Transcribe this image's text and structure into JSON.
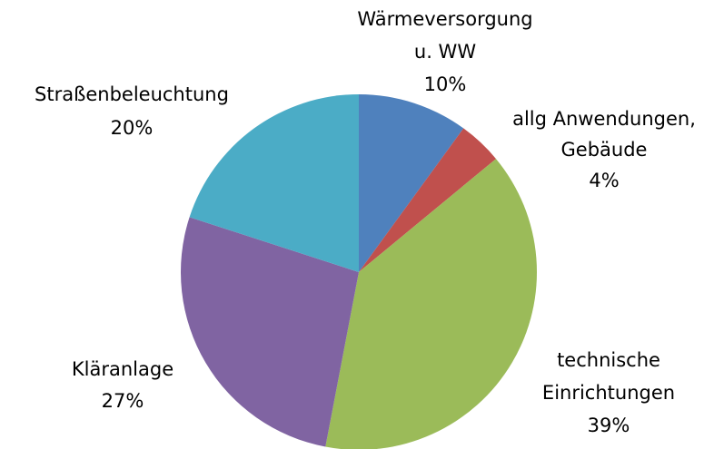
{
  "chart_data": {
    "type": "pie",
    "categories": [
      [
        "Wärmeversorgung",
        "u. WW"
      ],
      [
        "allg Anwendungen,",
        "Gebäude"
      ],
      [
        "technische",
        "Einrichtungen"
      ],
      [
        "Kläranlage"
      ],
      [
        "Straßenbeleuchtung"
      ]
    ],
    "values": [
      10,
      4,
      39,
      27,
      20
    ],
    "value_labels": [
      "10%",
      "4%",
      "39%",
      "27%",
      "20%"
    ],
    "colors": [
      "#4f81bd",
      "#c0504d",
      "#9bbb59",
      "#8064a2",
      "#4bacc6"
    ]
  }
}
